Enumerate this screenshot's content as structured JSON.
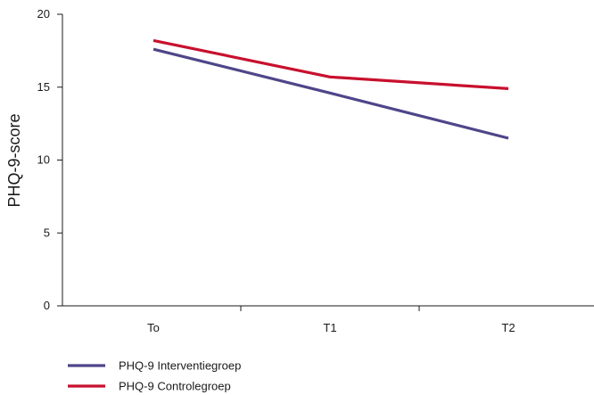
{
  "chart_data": {
    "type": "line",
    "title": "",
    "xlabel": "",
    "ylabel": "PHQ-9-score",
    "categories": [
      "To",
      "T1",
      "T2"
    ],
    "ylim": [
      0,
      20
    ],
    "yticks": [
      0,
      5,
      10,
      15,
      20
    ],
    "grid": false,
    "legend_position": "bottom-left",
    "series": [
      {
        "name": "PHQ-9 Interventiegroep",
        "color": "#4e4689",
        "values": [
          17.6,
          14.6,
          11.5
        ]
      },
      {
        "name": "PHQ-9 Controlegroep",
        "color": "#c8102e",
        "values": [
          18.2,
          15.7,
          14.9
        ]
      }
    ]
  }
}
